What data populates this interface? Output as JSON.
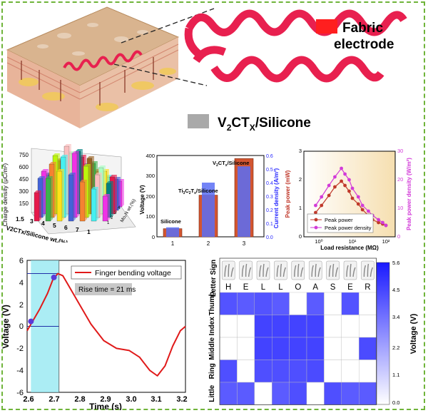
{
  "colors": {
    "border": "#6fb43a",
    "fabric": "#ff1f1f",
    "electrode_pink": "#e8204f",
    "silicone": "#a9a9a9",
    "voltage_line": "#e01a1a",
    "marker": "#5a3bd8",
    "peak_power": "#c0392b",
    "peak_density": "#d23bd8",
    "highlight": "#8fe7f0",
    "heat_max": "#1a1aff"
  },
  "top": {
    "legend_fabric": [
      "Fabric",
      "electrode"
    ],
    "legend_silicone_main": "V",
    "legend_silicone_sub1": "2",
    "legend_silicone_mid": "CT",
    "legend_silicone_sub2": "X",
    "legend_silicone_tail": "/Silicone"
  },
  "charts": {
    "charge3d": {
      "ylabel": "Charge density (μC/m²)",
      "yticks": [
        "750",
        "600",
        "450",
        "300",
        "150"
      ],
      "xlabel": "V2CTx/Silicone wt.(%)",
      "xticks": [
        "1.5",
        "3",
        "4",
        "5",
        "6",
        "7",
        "1"
      ],
      "zlabel": "Mo₂N wt.(%)",
      "zticks": [
        "1",
        "2",
        "3",
        "4",
        "5"
      ]
    },
    "voltage_bar": {
      "type": "bar",
      "categories": [
        "1",
        "2",
        "3"
      ],
      "labels": [
        "Silicone",
        "Ti3C2Tx/Silicone",
        "V2CTx/Silicone"
      ],
      "voltage": [
        40,
        205,
        385
      ],
      "current_density": [
        0.07,
        0.4,
        0.52
      ],
      "ylabel": "Voltage (V)",
      "y2label": "Current density (A/m²)",
      "ylim": [
        0,
        400
      ],
      "yticks": [
        "0",
        "100",
        "200",
        "300",
        "400"
      ],
      "y2lim": [
        0,
        0.6
      ],
      "y2ticks": [
        "0.0",
        "0.1",
        "0.2",
        "0.3",
        "0.4",
        "0.5",
        "0.6"
      ]
    },
    "peak_power": {
      "type": "line",
      "x": [
        0.8,
        1.2,
        2,
        3,
        4.7,
        6,
        8,
        10,
        15,
        20,
        30,
        40,
        60,
        80,
        100
      ],
      "power": [
        0.85,
        1.1,
        1.45,
        1.75,
        1.95,
        1.8,
        1.6,
        1.35,
        1.15,
        0.95,
        0.75,
        0.6,
        0.5,
        0.45,
        0.4
      ],
      "density": [
        11,
        14,
        18,
        21,
        24,
        22,
        20,
        17,
        14,
        11,
        9,
        7.5,
        6,
        5,
        4
      ],
      "ylabel": "Peak power (mW)",
      "y2label": "Peak power density (W/m²)",
      "xlabel": "Load resistance (MΩ)",
      "yticks": [
        "0",
        "1",
        "2",
        "3"
      ],
      "y2ticks": [
        "0",
        "10",
        "20",
        "30"
      ],
      "xticks": [
        "10⁰",
        "10¹",
        "10²"
      ],
      "legend": [
        "Peak power",
        "Peak power density"
      ]
    },
    "finger": {
      "type": "line",
      "legend": "Finger bending voltage",
      "rise": "Rise time = 21 ms",
      "xlabel": "Time (s)",
      "ylabel": "Voltage (V)",
      "xlim": [
        2.6,
        3.22
      ],
      "ylim": [
        -6,
        6
      ],
      "xticks": [
        "2.6",
        "2.7",
        "2.8",
        "2.9",
        "3.0",
        "3.1",
        "3.2"
      ],
      "yticks": [
        "6",
        "4",
        "2",
        "0",
        "-2",
        "-4",
        "-6"
      ],
      "points": [
        [
          2.6,
          -0.4
        ],
        [
          2.62,
          0.4
        ],
        [
          2.65,
          1.6
        ],
        [
          2.68,
          3.0
        ],
        [
          2.7,
          4.2
        ],
        [
          2.72,
          4.8
        ],
        [
          2.74,
          4.6
        ],
        [
          2.76,
          3.8
        ],
        [
          2.8,
          2.2
        ],
        [
          2.85,
          0.2
        ],
        [
          2.9,
          -1.3
        ],
        [
          2.95,
          -2.0
        ],
        [
          3.0,
          -2.2
        ],
        [
          3.04,
          -2.8
        ],
        [
          3.08,
          -4.0
        ],
        [
          3.11,
          -4.5
        ],
        [
          3.14,
          -3.6
        ],
        [
          3.17,
          -1.8
        ],
        [
          3.2,
          -0.4
        ],
        [
          3.22,
          0.0
        ]
      ],
      "markers": [
        [
          2.615,
          0.45
        ],
        [
          2.705,
          4.45
        ]
      ]
    },
    "heatmap": {
      "type": "heatmap",
      "letters": [
        "H",
        "E",
        "L",
        "L",
        "O",
        "A",
        "S",
        "E",
        "R"
      ],
      "rows": [
        "Thumb",
        "Index",
        "Middle",
        "Ring",
        "Little"
      ],
      "corner_label": "Letter Sign",
      "colorbar_label": "Voltage (V)",
      "colorbar_ticks": [
        "5.6",
        "4.5",
        "3.4",
        "2.2",
        "1.1",
        "0.0"
      ],
      "values": [
        [
          4.2,
          4.0,
          4.2,
          4.0,
          0.0,
          4.0,
          0.0,
          4.2,
          0.0
        ],
        [
          0.0,
          0.0,
          4.6,
          4.6,
          4.6,
          4.6,
          0.0,
          0.0,
          0.0
        ],
        [
          0.0,
          0.0,
          4.6,
          4.6,
          4.6,
          4.6,
          0.0,
          0.0,
          4.4
        ],
        [
          4.3,
          0.0,
          4.3,
          4.3,
          4.3,
          4.4,
          0.0,
          0.0,
          0.0
        ],
        [
          4.0,
          4.0,
          0.0,
          4.0,
          4.3,
          0.0,
          4.3,
          4.0,
          4.0
        ]
      ]
    }
  }
}
